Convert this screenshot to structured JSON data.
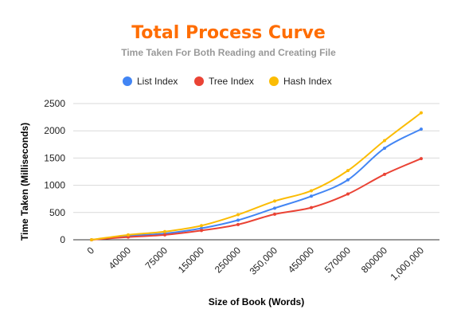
{
  "colors": {
    "title": "#ff6d01",
    "subtitle": "#999999",
    "grid": "#d9d9d9",
    "axis": "#333333"
  },
  "chart_data": {
    "type": "line",
    "title": "Total Process Curve",
    "subtitle": "Time Taken For Both Reading and Creating File",
    "xlabel": "Size of Book (Words)",
    "ylabel": "Time Taken (Milliseconds)",
    "categories": [
      "0",
      "40000",
      "75000",
      "150000",
      "250000",
      "350,000",
      "450000",
      "570000",
      "800000",
      "1,000,000"
    ],
    "ylim": [
      0,
      2500
    ],
    "yticks": [
      "0",
      "500",
      "1000",
      "1500",
      "2000",
      "2500"
    ],
    "grid": true,
    "legend_position": "top",
    "series": [
      {
        "name": "List Index",
        "color": "#4285f4",
        "values": [
          0,
          70,
          115,
          210,
          360,
          580,
          800,
          1100,
          1680,
          2030
        ]
      },
      {
        "name": "Tree Index",
        "color": "#ea4335",
        "values": [
          0,
          50,
          90,
          170,
          280,
          470,
          590,
          840,
          1200,
          1490
        ]
      },
      {
        "name": "Hash Index",
        "color": "#fbbc04",
        "values": [
          0,
          90,
          150,
          260,
          460,
          710,
          900,
          1270,
          1820,
          2330
        ]
      }
    ]
  }
}
